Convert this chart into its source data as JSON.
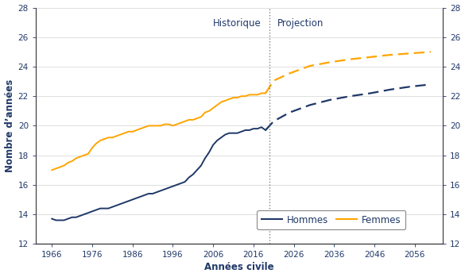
{
  "xlabel": "Années civile",
  "ylabel": "Nombre d’années",
  "ylim": [
    12,
    28
  ],
  "yticks": [
    12,
    14,
    16,
    18,
    20,
    22,
    24,
    26,
    28
  ],
  "xticks": [
    1966,
    1976,
    1986,
    1996,
    2006,
    2016,
    2026,
    2036,
    2046,
    2056
  ],
  "xlim": [
    1962,
    2063
  ],
  "divider_year": 2020,
  "label_historique": "Historique",
  "label_projection": "Projection",
  "label_hommes": "Hommes",
  "label_femmes": "Femmes",
  "color_hommes": "#1F3868",
  "color_femmes": "#FFA500",
  "text_color": "#1F3868",
  "grid_color": "#D0D0D0",
  "hommes_hist_years": [
    1966,
    1967,
    1968,
    1969,
    1970,
    1971,
    1972,
    1973,
    1974,
    1975,
    1976,
    1977,
    1978,
    1979,
    1980,
    1981,
    1982,
    1983,
    1984,
    1985,
    1986,
    1987,
    1988,
    1989,
    1990,
    1991,
    1992,
    1993,
    1994,
    1995,
    1996,
    1997,
    1998,
    1999,
    2000,
    2001,
    2002,
    2003,
    2004,
    2005,
    2006,
    2007,
    2008,
    2009,
    2010,
    2011,
    2012,
    2013,
    2014,
    2015,
    2016,
    2017,
    2018,
    2019
  ],
  "hommes_hist_vals": [
    13.7,
    13.6,
    13.6,
    13.6,
    13.7,
    13.8,
    13.8,
    13.9,
    14.0,
    14.1,
    14.2,
    14.3,
    14.4,
    14.4,
    14.4,
    14.5,
    14.6,
    14.7,
    14.8,
    14.9,
    15.0,
    15.1,
    15.2,
    15.3,
    15.4,
    15.4,
    15.5,
    15.6,
    15.7,
    15.8,
    15.9,
    16.0,
    16.1,
    16.2,
    16.5,
    16.7,
    17.0,
    17.3,
    17.8,
    18.2,
    18.7,
    19.0,
    19.2,
    19.4,
    19.5,
    19.5,
    19.5,
    19.6,
    19.7,
    19.7,
    19.8,
    19.8,
    19.9,
    19.7
  ],
  "hommes_proj_years": [
    2019,
    2021,
    2025,
    2030,
    2035,
    2040,
    2045,
    2050,
    2055,
    2060
  ],
  "hommes_proj_vals": [
    19.7,
    20.3,
    20.9,
    21.4,
    21.75,
    22.0,
    22.2,
    22.45,
    22.65,
    22.8
  ],
  "femmes_hist_years": [
    1966,
    1967,
    1968,
    1969,
    1970,
    1971,
    1972,
    1973,
    1974,
    1975,
    1976,
    1977,
    1978,
    1979,
    1980,
    1981,
    1982,
    1983,
    1984,
    1985,
    1986,
    1987,
    1988,
    1989,
    1990,
    1991,
    1992,
    1993,
    1994,
    1995,
    1996,
    1997,
    1998,
    1999,
    2000,
    2001,
    2002,
    2003,
    2004,
    2005,
    2006,
    2007,
    2008,
    2009,
    2010,
    2011,
    2012,
    2013,
    2014,
    2015,
    2016,
    2017,
    2018,
    2019
  ],
  "femmes_hist_vals": [
    17.0,
    17.1,
    17.2,
    17.3,
    17.5,
    17.6,
    17.8,
    17.9,
    18.0,
    18.1,
    18.5,
    18.8,
    19.0,
    19.1,
    19.2,
    19.2,
    19.3,
    19.4,
    19.5,
    19.6,
    19.6,
    19.7,
    19.8,
    19.9,
    20.0,
    20.0,
    20.0,
    20.0,
    20.1,
    20.1,
    20.0,
    20.1,
    20.2,
    20.3,
    20.4,
    20.4,
    20.5,
    20.6,
    20.9,
    21.0,
    21.2,
    21.4,
    21.6,
    21.7,
    21.8,
    21.9,
    21.9,
    22.0,
    22.0,
    22.1,
    22.1,
    22.1,
    22.2,
    22.2
  ],
  "femmes_proj_years": [
    2019,
    2021,
    2025,
    2030,
    2035,
    2040,
    2045,
    2050,
    2055,
    2060
  ],
  "femmes_proj_vals": [
    22.2,
    23.05,
    23.55,
    24.05,
    24.3,
    24.5,
    24.65,
    24.8,
    24.9,
    25.0
  ]
}
